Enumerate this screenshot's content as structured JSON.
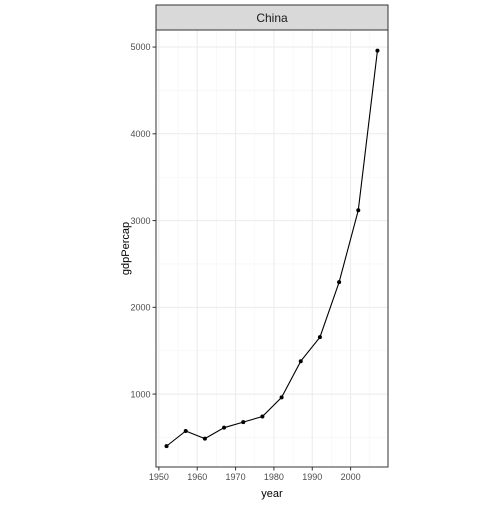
{
  "chart_data": {
    "type": "line",
    "facet_label": "China",
    "xlabel": "year",
    "ylabel": "gdpPercap",
    "xlim": [
      1949.25,
      2009.75
    ],
    "ylim": [
      159.5,
      5196.5
    ],
    "x_ticks": [
      1950,
      1960,
      1970,
      1980,
      1990,
      2000
    ],
    "y_ticks": [
      1000,
      2000,
      3000,
      4000,
      5000
    ],
    "x_tick_labels": [
      "1950",
      "1960",
      "1970",
      "1980",
      "1990",
      "2000"
    ],
    "y_tick_labels": [
      "1000",
      "2000",
      "3000",
      "4000",
      "5000"
    ],
    "grid": true,
    "series": [
      {
        "x": [
          1952,
          1957,
          1962,
          1967,
          1972,
          1977,
          1982,
          1987,
          1992,
          1997,
          2002,
          2007
        ],
        "y": [
          400,
          575,
          487,
          613,
          677,
          741,
          962,
          1379,
          1656,
          2290,
          3119,
          4959
        ]
      }
    ],
    "colors": {
      "line": "#000000",
      "point": "#000000",
      "panel_border": "#333333",
      "strip_fill": "#d9d9d9",
      "grid_major": "#ebebeb",
      "grid_minor": "#f5f5f5",
      "axis_text": "#4d4d4d",
      "axis_title": "#000000"
    }
  }
}
